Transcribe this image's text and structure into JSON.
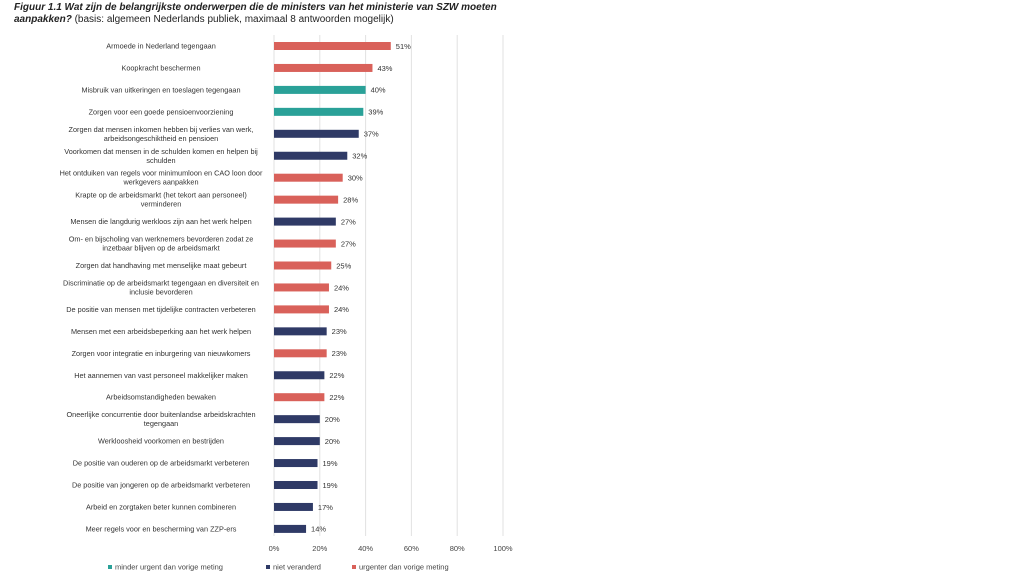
{
  "title": {
    "lead": "Figuur 1.1 Wat zijn de belangrijkste onderwerpen die de ministers van het ministerie van SZW moeten aanpakken?",
    "basis": " (basis: algemeen Nederlands publiek, maximaal 8 antwoorden mogelijk)"
  },
  "colors": {
    "minder": "#2aa198",
    "niet": "#2f3a66",
    "urgenter": "#d9615a",
    "grid": "#e2e2e2"
  },
  "chart_data": {
    "type": "bar",
    "orientation": "horizontal",
    "xlim": [
      0,
      100
    ],
    "xticks": [
      "0%",
      "20%",
      "40%",
      "60%",
      "80%",
      "100%"
    ],
    "grid": true,
    "legend_position": "bottom",
    "legend": [
      {
        "key": "minder",
        "label": "minder urgent dan vorige meting"
      },
      {
        "key": "niet",
        "label": "niet veranderd"
      },
      {
        "key": "urgenter",
        "label": "urgenter dan vorige meting"
      }
    ],
    "bars": [
      {
        "label": [
          "Armoede in Nederland tegengaan"
        ],
        "value": 51,
        "value_label": "51%",
        "status": "urgenter"
      },
      {
        "label": [
          "Koopkracht  beschermen"
        ],
        "value": 43,
        "value_label": "43%",
        "status": "urgenter"
      },
      {
        "label": [
          "Misbruik van uitkeringen en toeslagen tegengaan"
        ],
        "value": 40,
        "value_label": "40%",
        "status": "minder"
      },
      {
        "label": [
          "Zorgen voor een goede pensioenvoorziening"
        ],
        "value": 39,
        "value_label": "39%",
        "status": "minder"
      },
      {
        "label": [
          "Zorgen dat mensen inkomen hebben bij verlies van werk,",
          "arbeidsongeschiktheid en pensioen"
        ],
        "value": 37,
        "value_label": "37%",
        "status": "niet"
      },
      {
        "label": [
          "Voorkomen dat mensen in de schulden komen en helpen bij",
          "schulden"
        ],
        "value": 32,
        "value_label": "32%",
        "status": "niet"
      },
      {
        "label": [
          "Het ontduiken van regels voor minimumloon en CAO loon door",
          "werkgevers aanpakken"
        ],
        "value": 30,
        "value_label": "30%",
        "status": "urgenter"
      },
      {
        "label": [
          "Krapte op de arbeidsmarkt (het tekort aan personeel)",
          "verminderen"
        ],
        "value": 28,
        "value_label": "28%",
        "status": "urgenter"
      },
      {
        "label": [
          "Mensen die langdurig werkloos zijn aan het werk helpen"
        ],
        "value": 27,
        "value_label": "27%",
        "status": "niet"
      },
      {
        "label": [
          "Om- en bijscholing van werknemers bevorderen zodat ze",
          "inzetbaar blijven op de arbeidsmarkt"
        ],
        "value": 27,
        "value_label": "27%",
        "status": "urgenter"
      },
      {
        "label": [
          "Zorgen dat handhaving met menselijke maat gebeurt"
        ],
        "value": 25,
        "value_label": "25%",
        "status": "urgenter"
      },
      {
        "label": [
          "Discriminatie op de arbeidsmarkt tegengaan en diversiteit en",
          "inclusie bevorderen"
        ],
        "value": 24,
        "value_label": "24%",
        "status": "urgenter"
      },
      {
        "label": [
          "De positie van mensen met tijdelijke contracten verbeteren"
        ],
        "value": 24,
        "value_label": "24%",
        "status": "urgenter"
      },
      {
        "label": [
          "Mensen met een arbeidsbeperking aan het werk helpen"
        ],
        "value": 23,
        "value_label": "23%",
        "status": "niet"
      },
      {
        "label": [
          "Zorgen voor integratie en inburgering van nieuwkomers"
        ],
        "value": 23,
        "value_label": "23%",
        "status": "urgenter"
      },
      {
        "label": [
          "Het aannemen van vast personeel makkelijker maken"
        ],
        "value": 22,
        "value_label": "22%",
        "status": "niet"
      },
      {
        "label": [
          "Arbeidsomstandigheden bewaken"
        ],
        "value": 22,
        "value_label": "22%",
        "status": "urgenter"
      },
      {
        "label": [
          "Oneerlijke concurrentie door buitenlandse arbeidskrachten",
          "tegengaan"
        ],
        "value": 20,
        "value_label": "20%",
        "status": "niet"
      },
      {
        "label": [
          "Werkloosheid voorkomen en bestrijden"
        ],
        "value": 20,
        "value_label": "20%",
        "status": "niet"
      },
      {
        "label": [
          "De positie van ouderen op de arbeidsmarkt verbeteren"
        ],
        "value": 19,
        "value_label": "19%",
        "status": "niet"
      },
      {
        "label": [
          "De positie van jongeren op de arbeidsmarkt verbeteren"
        ],
        "value": 19,
        "value_label": "19%",
        "status": "niet"
      },
      {
        "label": [
          "Arbeid en zorgtaken beter kunnen combineren"
        ],
        "value": 17,
        "value_label": "17%",
        "status": "niet"
      },
      {
        "label": [
          "Meer regels voor en bescherming van ZZP-ers"
        ],
        "value": 14,
        "value_label": "14%",
        "status": "niet"
      }
    ]
  }
}
